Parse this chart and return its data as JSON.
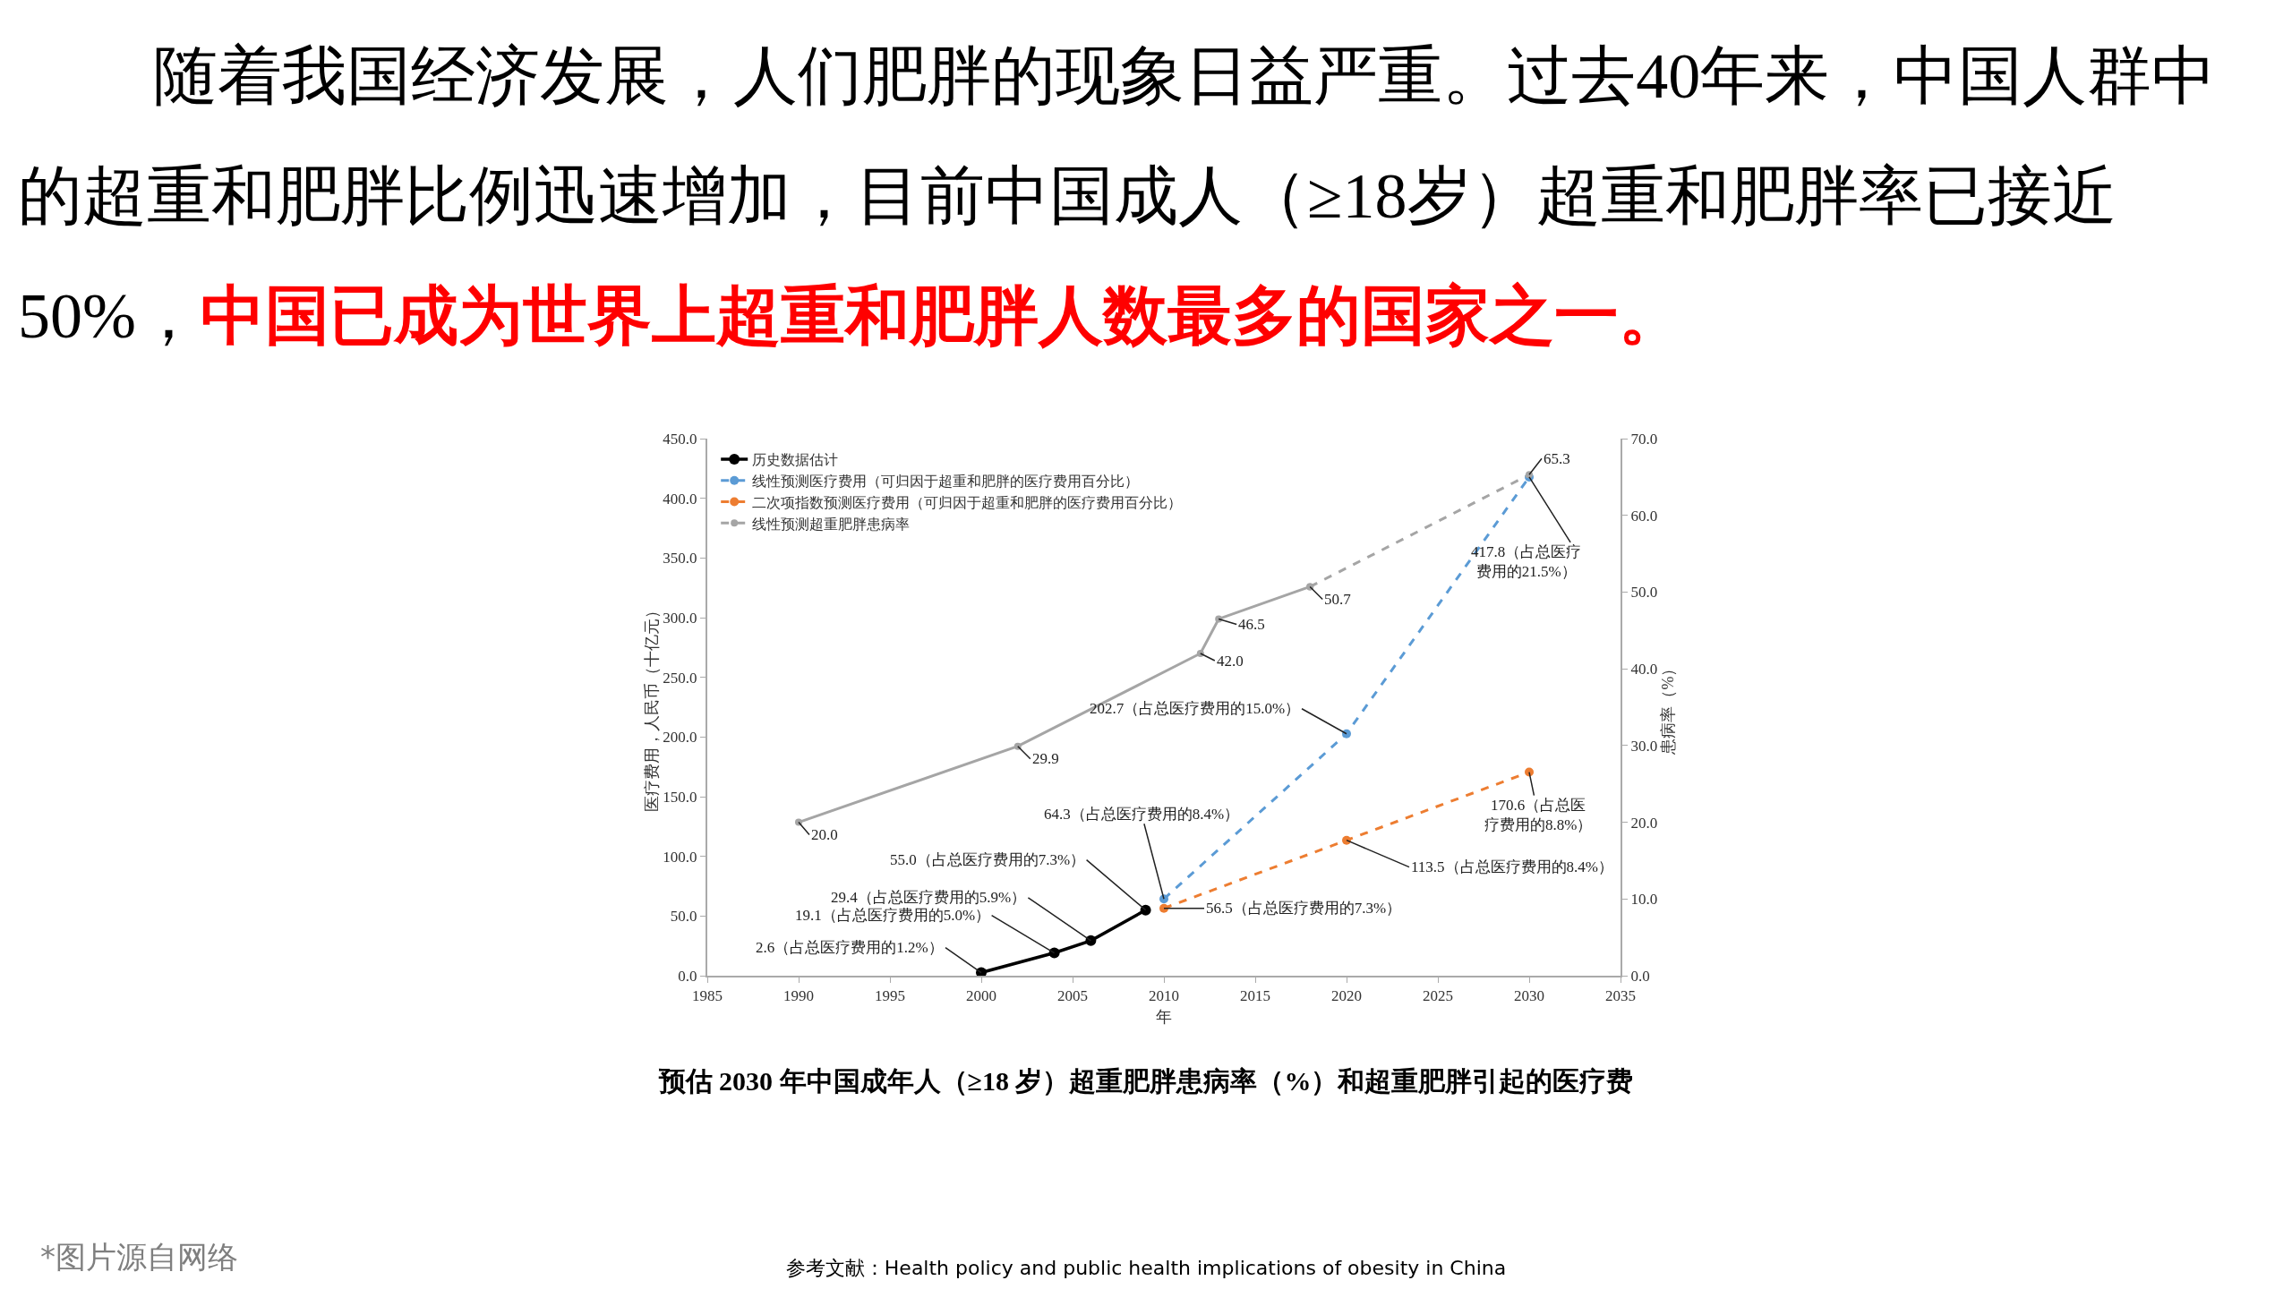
{
  "chart_data": {
    "type": "line",
    "title": "随着我国经济发展，人们肥胖的现象日益严重。过去40年来，中国人群中的超重和肥胖比例迅速增加，目前中国成人（≥18岁）超重和肥胖率已接近50%，",
    "subtitle": "中国已成为世界上超重和肥胖人数最多的国家之一。",
    "xlabel": "年",
    "ylabel": "医疗费用，人民币（十亿元）",
    "y2label": "患病率（%）",
    "annotations": [
      "预估 2030 年中国成年人（≥18 岁）超重肥胖患病率（%）和超重肥胖引起的医疗费",
      "*图片源自网络",
      "参考文献：Health policy and public health implications of obesity in China"
    ],
    "series": [
      {
        "name": "历史数据估计",
        "color": "#000000",
        "line_style": "solid",
        "x": [
          2000,
          2004,
          2006,
          2009
        ],
        "values": [
          2.6,
          19.1,
          29.4,
          55.0
        ],
        "value_labels": [
          "2.6（占总医疗费用的1.2%）",
          "19.1（占总医疗费用的5.0%）",
          "29.4（占总医疗费用的5.9%）",
          "55.0（占总医疗费用的7.3%）"
        ]
      },
      {
        "name": "线性预测医疗费用（可归因于超重和肥胖的医疗费用百分比）",
        "color": "#5b9bd5",
        "line_style": "dashed",
        "x": [
          2010,
          2020,
          2030
        ],
        "values": [
          64.3,
          202.7,
          417.8
        ],
        "value_labels": [
          "64.3（占总医疗费用的8.4%）",
          "202.7（占总医疗费用的15.0%）",
          "417.8（占总医疗费用的21.5%）"
        ]
      },
      {
        "name": "二次项指数预测医疗费用（可归因于超重和肥胖的医疗费用百分比）",
        "color": "#ed7d31",
        "line_style": "dashed",
        "x": [
          2010,
          2020,
          2030
        ],
        "values": [
          56.5,
          113.5,
          170.6
        ],
        "value_labels": [
          "56.5（占总医疗费用的7.3%）",
          "113.5（占总医疗费用的8.4%）",
          "170.6（占总医疗费用的8.8%）"
        ]
      },
      {
        "color": "#a5a5a5",
        "line_style": "solid",
        "axis": "y2",
        "x": [
          1990,
          2002,
          2012,
          2013,
          2018
        ],
        "values": [
          20.0,
          29.9,
          42.0,
          46.5,
          50.7
        ],
        "value_labels": [
          "20.0",
          "29.9",
          "42.0",
          "46.5",
          "50.7"
        ]
      },
      {
        "name": "线性预测超重肥胖患病率",
        "color": "#a5a5a5",
        "line_style": "dashed",
        "axis": "y2",
        "x": [
          2018,
          2030
        ],
        "values": [
          50.7,
          65.3
        ],
        "value_labels": [
          null,
          "65.3"
        ]
      }
    ],
    "marker": "circle",
    "legend": "top left",
    "grid": false,
    "xlim": [
      1985,
      2035
    ],
    "xticks": [
      1985,
      1990,
      1995,
      2000,
      2005,
      2010,
      2015,
      2020,
      2025,
      2030,
      2035
    ],
    "ylim": [
      0,
      450
    ],
    "yticks": [
      {
        "value": 0,
        "label": "0.0"
      },
      {
        "value": 50,
        "label": "50.0"
      },
      {
        "value": 100,
        "label": "100.0"
      },
      {
        "value": 150,
        "label": "150.0"
      },
      {
        "value": 200,
        "label": "200.0"
      },
      {
        "value": 250,
        "label": "250.0"
      },
      {
        "value": 300,
        "label": "300.0"
      },
      {
        "value": 350,
        "label": "350.0"
      },
      {
        "value": 400,
        "label": "400.0"
      },
      {
        "value": 450,
        "label": "450.0"
      }
    ],
    "y2lim": [
      0,
      70
    ],
    "y2ticks": [
      {
        "value": 0,
        "label": "0.0"
      },
      {
        "value": 10,
        "label": "10.0"
      },
      {
        "value": 20,
        "label": "20.0"
      },
      {
        "value": 30,
        "label": "30.0"
      },
      {
        "value": 40,
        "label": "40.0"
      },
      {
        "value": 50,
        "label": "50.0"
      },
      {
        "value": 60,
        "label": "60.0"
      },
      {
        "value": 70,
        "label": "70.0"
      }
    ]
  }
}
